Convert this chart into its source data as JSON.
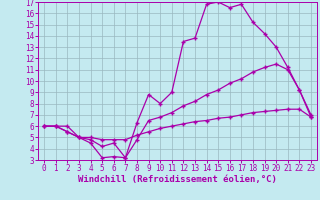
{
  "xlabel": "Windchill (Refroidissement éolien,°C)",
  "xlim": [
    -0.5,
    23.5
  ],
  "ylim": [
    3,
    17
  ],
  "xticks": [
    0,
    1,
    2,
    3,
    4,
    5,
    6,
    7,
    8,
    9,
    10,
    11,
    12,
    13,
    14,
    15,
    16,
    17,
    18,
    19,
    20,
    21,
    22,
    23
  ],
  "yticks": [
    3,
    4,
    5,
    6,
    7,
    8,
    9,
    10,
    11,
    12,
    13,
    14,
    15,
    16,
    17
  ],
  "line_color": "#aa00aa",
  "background_color": "#c4eaf0",
  "grid_color": "#9ab8c0",
  "line1_x": [
    0,
    1,
    2,
    3,
    4,
    5,
    6,
    7,
    8,
    9,
    10,
    11,
    12,
    13,
    14,
    15,
    16,
    17,
    18,
    19,
    20,
    21,
    22,
    23
  ],
  "line1_y": [
    6,
    6,
    6,
    5,
    4.5,
    3.2,
    3.3,
    3.2,
    6.3,
    8.8,
    8.0,
    9.0,
    13.5,
    13.8,
    16.8,
    17.0,
    16.5,
    16.8,
    15.2,
    14.2,
    13.0,
    11.2,
    9.2,
    6.8
  ],
  "line2_x": [
    0,
    1,
    2,
    3,
    4,
    5,
    6,
    7,
    8,
    9,
    10,
    11,
    12,
    13,
    14,
    15,
    16,
    17,
    18,
    19,
    20,
    21,
    22,
    23
  ],
  "line2_y": [
    6,
    6,
    5.5,
    5.0,
    4.8,
    4.2,
    4.5,
    3.2,
    4.8,
    6.5,
    6.8,
    7.2,
    7.8,
    8.2,
    8.8,
    9.2,
    9.8,
    10.2,
    10.8,
    11.2,
    11.5,
    11.0,
    9.2,
    7.0
  ],
  "line3_x": [
    0,
    1,
    2,
    3,
    4,
    5,
    6,
    7,
    8,
    9,
    10,
    11,
    12,
    13,
    14,
    15,
    16,
    17,
    18,
    19,
    20,
    21,
    22,
    23
  ],
  "line3_y": [
    6,
    6,
    5.5,
    5.0,
    5.0,
    4.8,
    4.8,
    4.8,
    5.2,
    5.5,
    5.8,
    6.0,
    6.2,
    6.4,
    6.5,
    6.7,
    6.8,
    7.0,
    7.2,
    7.3,
    7.4,
    7.5,
    7.5,
    6.8
  ],
  "marker": "+",
  "markersize": 3,
  "linewidth": 0.9,
  "tick_fontsize": 5.5,
  "label_fontsize": 6.5
}
